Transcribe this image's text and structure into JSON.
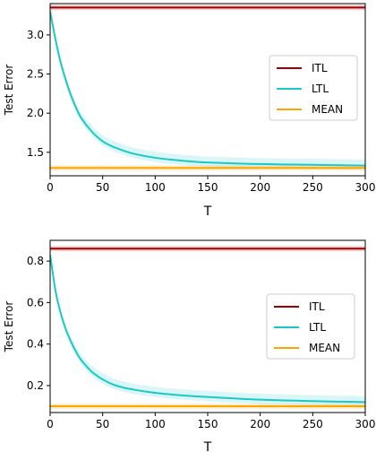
{
  "chart_data": [
    {
      "type": "line",
      "xlabel": "T",
      "ylabel": "Test Error",
      "xlim": [
        0,
        300
      ],
      "ylim": [
        1.2,
        3.4
      ],
      "xticks": [
        0,
        50,
        100,
        150,
        200,
        250,
        300
      ],
      "xtick_labels": [
        "0",
        "50",
        "100",
        "150",
        "200",
        "250",
        "300"
      ],
      "yticks": [
        1.5,
        2.0,
        2.5,
        3.0
      ],
      "ytick_labels": [
        "1.5",
        "2.0",
        "2.5",
        "3.0"
      ],
      "legend_position": "center-right",
      "grid": false,
      "series": [
        {
          "name": "ITL",
          "color": "#a00000",
          "x": [
            0,
            300
          ],
          "y": [
            3.35,
            3.35
          ]
        },
        {
          "name": "LTL",
          "color": "#1ac8c8",
          "x": [
            0,
            5,
            10,
            15,
            20,
            25,
            30,
            40,
            50,
            60,
            70,
            80,
            100,
            120,
            150,
            200,
            250,
            300
          ],
          "y": [
            3.3,
            2.95,
            2.65,
            2.42,
            2.22,
            2.06,
            1.93,
            1.76,
            1.64,
            1.57,
            1.52,
            1.48,
            1.43,
            1.4,
            1.37,
            1.35,
            1.34,
            1.33
          ],
          "band": true
        },
        {
          "name": "MEAN",
          "color": "#ffa500",
          "x": [
            0,
            300
          ],
          "y": [
            1.3,
            1.3
          ]
        }
      ]
    },
    {
      "type": "line",
      "xlabel": "T",
      "ylabel": "Test Error",
      "xlim": [
        0,
        300
      ],
      "ylim": [
        0.07,
        0.9
      ],
      "xticks": [
        0,
        50,
        100,
        150,
        200,
        250,
        300
      ],
      "xtick_labels": [
        "0",
        "50",
        "100",
        "150",
        "200",
        "250",
        "300"
      ],
      "yticks": [
        0.2,
        0.4,
        0.6,
        0.8
      ],
      "ytick_labels": [
        "0.2",
        "0.4",
        "0.6",
        "0.8"
      ],
      "legend_position": "center-right",
      "grid": false,
      "series": [
        {
          "name": "ITL",
          "color": "#a00000",
          "x": [
            0,
            300
          ],
          "y": [
            0.86,
            0.86
          ]
        },
        {
          "name": "LTL",
          "color": "#1ac8c8",
          "x": [
            0,
            5,
            10,
            15,
            20,
            25,
            30,
            40,
            50,
            60,
            70,
            80,
            100,
            120,
            150,
            200,
            250,
            300
          ],
          "y": [
            0.83,
            0.66,
            0.55,
            0.47,
            0.41,
            0.36,
            0.32,
            0.265,
            0.23,
            0.205,
            0.19,
            0.18,
            0.165,
            0.155,
            0.145,
            0.132,
            0.125,
            0.12
          ],
          "band": true
        },
        {
          "name": "MEAN",
          "color": "#ffa500",
          "x": [
            0,
            300
          ],
          "y": [
            0.1,
            0.1
          ]
        }
      ]
    }
  ]
}
